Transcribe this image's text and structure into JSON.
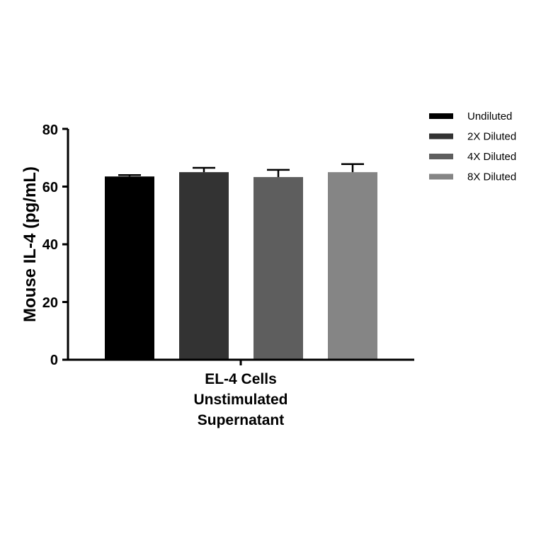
{
  "chart_data": {
    "type": "bar",
    "ylabel": "Mouse IL-4 (pg/mL)",
    "xlabel": "",
    "category_lines": [
      "EL-4 Cells",
      "Unstimulated",
      "Supernatant"
    ],
    "ylim": [
      0,
      80
    ],
    "yticks": [
      "0",
      "20",
      "40",
      "60",
      "80"
    ],
    "grid": false,
    "legend_position": "top-right",
    "series": [
      {
        "name": "Undiluted",
        "value": 63.5,
        "error": 0.5,
        "color": "#000000"
      },
      {
        "name": "2X Diluted",
        "value": 65.0,
        "error": 1.5,
        "color": "#333333"
      },
      {
        "name": "4X Diluted",
        "value": 63.3,
        "error": 2.5,
        "color": "#5e5e5e"
      },
      {
        "name": "8X Diluted",
        "value": 65.0,
        "error": 2.8,
        "color": "#858585"
      }
    ]
  }
}
